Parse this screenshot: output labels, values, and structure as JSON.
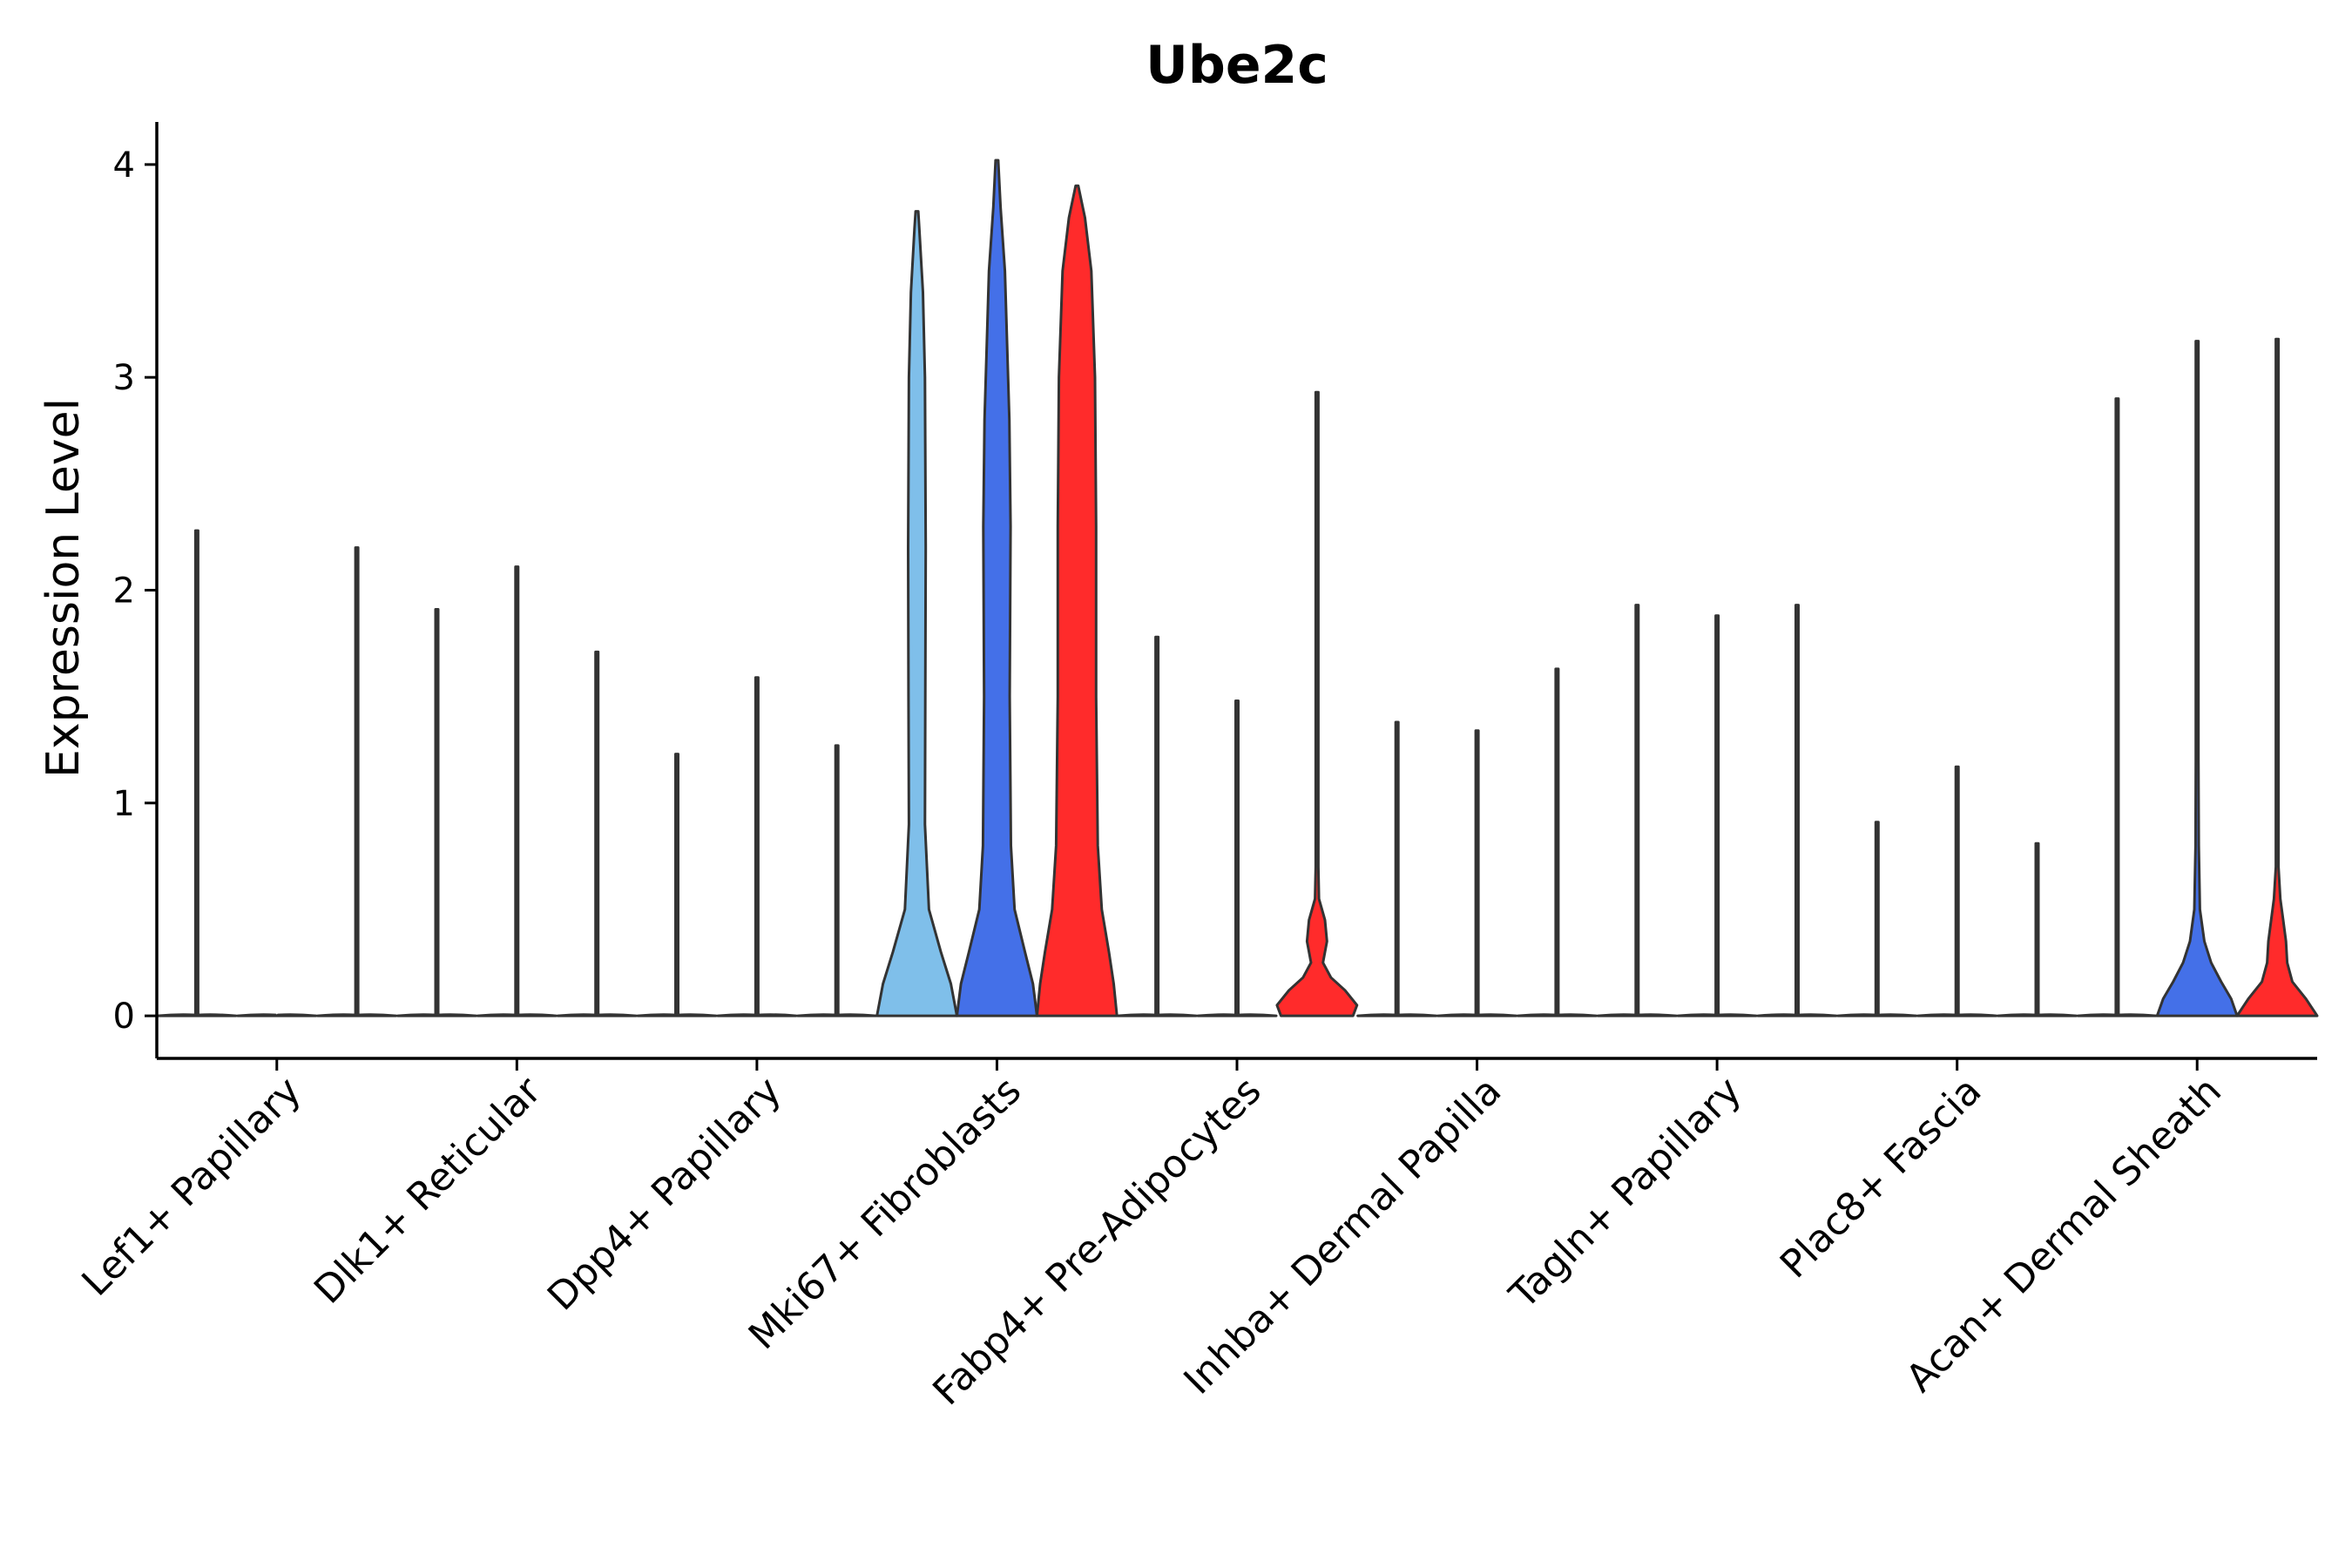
{
  "chart_data": {
    "type": "violin",
    "title": "Ube2c",
    "ylabel": "Expression Level",
    "xlabel": "",
    "ylim": [
      -0.2,
      4.2
    ],
    "yticks": [
      0,
      1,
      2,
      3,
      4
    ],
    "grid": false,
    "legend": "none",
    "colors": {
      "light": "#7fbfea",
      "blue": "#4470e8",
      "red": "#ff2b2b",
      "outline": "#333333"
    },
    "groups": [
      {
        "label": "Lef1+ Papillary",
        "violins": [
          {
            "max": 2.28,
            "fill": "light"
          },
          {
            "max": 0.0,
            "fill": "blue"
          },
          {
            "max": 2.2,
            "fill": "red"
          }
        ]
      },
      {
        "label": "Dlk1+ Reticular",
        "violins": [
          {
            "max": 1.91,
            "fill": "light"
          },
          {
            "max": 2.11,
            "fill": "blue"
          },
          {
            "max": 1.71,
            "fill": "red"
          }
        ]
      },
      {
        "label": "Dpp4+ Papillary",
        "violins": [
          {
            "max": 1.23,
            "fill": "light"
          },
          {
            "max": 1.59,
            "fill": "blue"
          },
          {
            "max": 1.27,
            "fill": "red"
          }
        ]
      },
      {
        "label": "Mki67+ Fibroblasts",
        "violins": [
          {
            "max": 3.78,
            "fill": "light",
            "bulk": [
              [
                0.0,
                1.0
              ],
              [
                0.15,
                0.85
              ],
              [
                0.3,
                0.6
              ],
              [
                0.5,
                0.3
              ],
              [
                0.9,
                0.2
              ],
              [
                1.5,
                0.21
              ],
              [
                2.2,
                0.22
              ],
              [
                3.0,
                0.2
              ],
              [
                3.4,
                0.15
              ],
              [
                3.7,
                0.06
              ],
              [
                3.78,
                0.0
              ]
            ]
          },
          {
            "max": 4.02,
            "fill": "blue",
            "bulk": [
              [
                0.0,
                1.0
              ],
              [
                0.15,
                0.9
              ],
              [
                0.3,
                0.7
              ],
              [
                0.5,
                0.44
              ],
              [
                0.8,
                0.35
              ],
              [
                1.5,
                0.32
              ],
              [
                2.3,
                0.34
              ],
              [
                2.8,
                0.31
              ],
              [
                3.5,
                0.2
              ],
              [
                3.8,
                0.09
              ],
              [
                4.02,
                0.0
              ]
            ]
          },
          {
            "max": 3.9,
            "fill": "red",
            "bulk": [
              [
                0.0,
                1.0
              ],
              [
                0.15,
                0.92
              ],
              [
                0.3,
                0.8
              ],
              [
                0.5,
                0.62
              ],
              [
                0.8,
                0.52
              ],
              [
                1.5,
                0.48
              ],
              [
                2.3,
                0.48
              ],
              [
                3.0,
                0.45
              ],
              [
                3.5,
                0.36
              ],
              [
                3.75,
                0.2
              ],
              [
                3.9,
                0.0
              ]
            ]
          }
        ]
      },
      {
        "label": "Fabp4+ Pre-Adipocytes",
        "violins": [
          {
            "max": 1.78,
            "fill": "light"
          },
          {
            "max": 1.48,
            "fill": "blue"
          },
          {
            "max": 2.93,
            "fill": "red",
            "bulk": [
              [
                0.0,
                0.9
              ],
              [
                0.05,
                1.0
              ],
              [
                0.12,
                0.7
              ],
              [
                0.18,
                0.35
              ],
              [
                0.25,
                0.15
              ],
              [
                0.35,
                0.25
              ],
              [
                0.45,
                0.2
              ],
              [
                0.55,
                0.05
              ],
              [
                0.7,
                0.02
              ],
              [
                0.9,
                0.02
              ],
              [
                1.2,
                0.0
              ]
            ]
          }
        ]
      },
      {
        "label": "Inhba+ Dermal Papilla",
        "violins": [
          {
            "max": 1.38,
            "fill": "light"
          },
          {
            "max": 1.34,
            "fill": "blue"
          },
          {
            "max": 1.63,
            "fill": "red"
          }
        ]
      },
      {
        "label": "Tagln+ Papillary",
        "violins": [
          {
            "max": 1.93,
            "fill": "light"
          },
          {
            "max": 1.88,
            "fill": "blue"
          },
          {
            "max": 1.93,
            "fill": "red"
          }
        ]
      },
      {
        "label": "Plac8+ Fascia",
        "violins": [
          {
            "max": 0.91,
            "fill": "light"
          },
          {
            "max": 1.17,
            "fill": "blue"
          },
          {
            "max": 0.81,
            "fill": "red"
          }
        ]
      },
      {
        "label": "Acan+ Dermal Sheath",
        "violins": [
          {
            "max": 2.9,
            "fill": "light"
          },
          {
            "max": 3.17,
            "fill": "blue",
            "bulk": [
              [
                0.0,
                1.0
              ],
              [
                0.08,
                0.85
              ],
              [
                0.16,
                0.6
              ],
              [
                0.25,
                0.35
              ],
              [
                0.35,
                0.18
              ],
              [
                0.5,
                0.07
              ],
              [
                0.8,
                0.04
              ],
              [
                1.2,
                0.03
              ],
              [
                2.0,
                0.02
              ],
              [
                2.4,
                0.0
              ]
            ]
          },
          {
            "max": 3.18,
            "fill": "red",
            "bulk": [
              [
                0.0,
                1.0
              ],
              [
                0.08,
                0.72
              ],
              [
                0.16,
                0.38
              ],
              [
                0.25,
                0.25
              ],
              [
                0.35,
                0.22
              ],
              [
                0.45,
                0.15
              ],
              [
                0.55,
                0.08
              ],
              [
                0.7,
                0.03
              ],
              [
                1.0,
                0.02
              ],
              [
                1.4,
                0.0
              ]
            ]
          }
        ]
      }
    ]
  }
}
